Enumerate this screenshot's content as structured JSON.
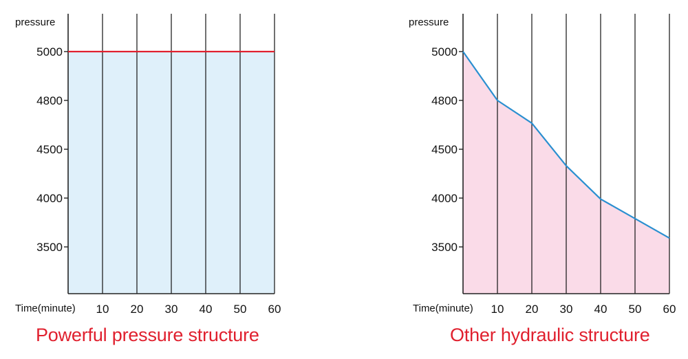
{
  "chart_data": [
    {
      "type": "area",
      "title": "Powerful pressure structure",
      "ylabel": "pressure",
      "xlabel": "Time(minute)",
      "x": [
        0,
        10,
        20,
        30,
        40,
        50,
        60
      ],
      "x_ticks": [
        "10",
        "20",
        "30",
        "40",
        "50",
        "60"
      ],
      "y_ticks": [
        "5000",
        "4800",
        "4500",
        "4000",
        "3500"
      ],
      "values": [
        5000,
        5000,
        5000,
        5000,
        5000,
        5000,
        5000
      ],
      "line_color": "#e0202e",
      "fill_color": "#dff0fa",
      "grid": "vertical"
    },
    {
      "type": "area",
      "title": "Other hydraulic structure",
      "ylabel": "pressure",
      "xlabel": "Time(minute)",
      "x": [
        0,
        10,
        20,
        30,
        40,
        50,
        60
      ],
      "x_ticks": [
        "10",
        "20",
        "30",
        "40",
        "50",
        "60"
      ],
      "y_ticks": [
        "5000",
        "4800",
        "4500",
        "4000",
        "3500"
      ],
      "values": [
        5000,
        4800,
        4660,
        4330,
        3990,
        3790,
        3590
      ],
      "line_color": "#2a8fd0",
      "fill_color": "#fadbe8",
      "grid": "vertical"
    }
  ]
}
